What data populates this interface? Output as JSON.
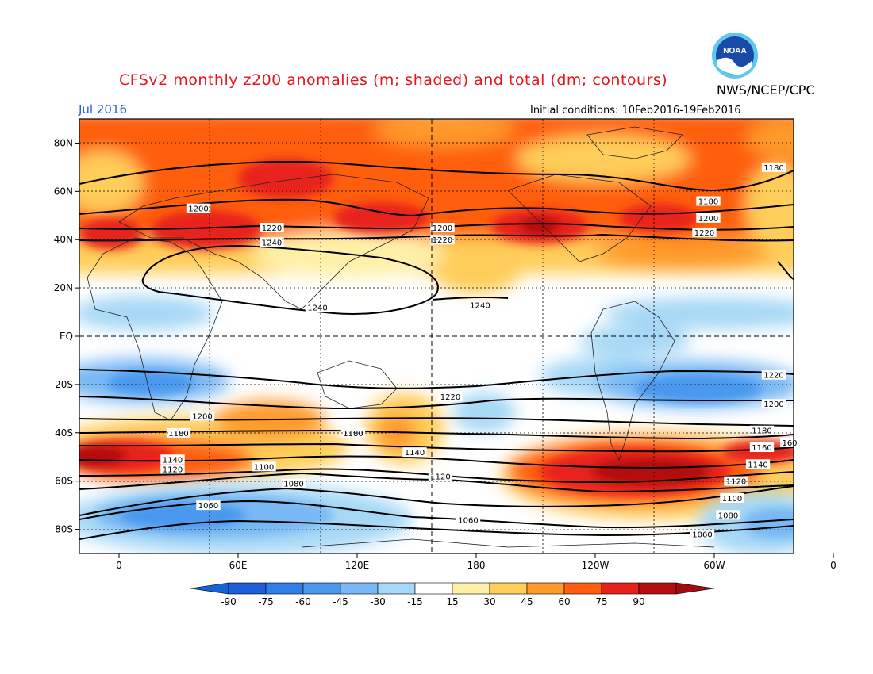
{
  "title": "CFSv2 monthly z200 anomalies (m; shaded) and total (dm; contours)",
  "agency": "NWS/NCEP/CPC",
  "logo_text": "NOAA",
  "month": "Jul 2016",
  "initial_conditions": "Initial conditions: 10Feb2016-19Feb2016",
  "lat_labels": [
    "80N",
    "60N",
    "40N",
    "20N",
    "EQ",
    "20S",
    "40S",
    "60S",
    "80S"
  ],
  "lon_labels": [
    "0",
    "60E",
    "120E",
    "180",
    "120W",
    "60W",
    "0"
  ],
  "colorbar": {
    "ticks": [
      "-90",
      "-75",
      "-60",
      "-45",
      "-30",
      "-15",
      "15",
      "30",
      "45",
      "60",
      "75",
      "90"
    ],
    "colors": [
      "#1e5ed8",
      "#2f7fe6",
      "#4a98ee",
      "#78b8f4",
      "#a6d8f6",
      "#ffffff",
      "#fff0a8",
      "#ffcd5a",
      "#ff9a2a",
      "#ff5e10",
      "#e8201a",
      "#b40e10"
    ],
    "end_low": "#1463d6",
    "end_high": "#a00c10"
  },
  "contour_labels": [
    {
      "text": "1180",
      "lon": -30,
      "lat": 70
    },
    {
      "text": "1200",
      "lon": 40,
      "lat": 53
    },
    {
      "text": "1220",
      "lon": 77,
      "lat": 45
    },
    {
      "text": "1240",
      "lon": 77,
      "lat": 39
    },
    {
      "text": "1200",
      "lon": 163,
      "lat": 45
    },
    {
      "text": "1220",
      "lon": 163,
      "lat": 40
    },
    {
      "text": "1180",
      "lon": -63,
      "lat": 56
    },
    {
      "text": "1200",
      "lon": -63,
      "lat": 49
    },
    {
      "text": "1220",
      "lon": -65,
      "lat": 43
    },
    {
      "text": "1240",
      "lon": 100,
      "lat": 12
    },
    {
      "text": "1240",
      "lon": -178,
      "lat": 13
    },
    {
      "text": "1220",
      "lon": -30,
      "lat": -16
    },
    {
      "text": "1200",
      "lon": -30,
      "lat": -28
    },
    {
      "text": "1220",
      "lon": 167,
      "lat": -25
    },
    {
      "text": "1200",
      "lon": 42,
      "lat": -33
    },
    {
      "text": "1180",
      "lon": 30,
      "lat": -40
    },
    {
      "text": "1180",
      "lon": 118,
      "lat": -40
    },
    {
      "text": "1140",
      "lon": 149,
      "lat": -48
    },
    {
      "text": "160",
      "lon": -22,
      "lat": -44
    },
    {
      "text": "1140",
      "lon": 27,
      "lat": -51
    },
    {
      "text": "1120",
      "lon": 27,
      "lat": -55
    },
    {
      "text": "1100",
      "lon": 73,
      "lat": -54
    },
    {
      "text": "1080",
      "lon": 88,
      "lat": -61
    },
    {
      "text": "1060",
      "lon": 45,
      "lat": -70
    },
    {
      "text": "1120",
      "lon": 162,
      "lat": -58
    },
    {
      "text": "1060",
      "lon": 176,
      "lat": -76
    },
    {
      "text": "1180",
      "lon": -36,
      "lat": -39
    },
    {
      "text": "1160",
      "lon": -36,
      "lat": -46
    },
    {
      "text": "1140",
      "lon": -38,
      "lat": -53
    },
    {
      "text": "1120",
      "lon": -49,
      "lat": -60
    },
    {
      "text": "1100",
      "lon": -51,
      "lat": -67
    },
    {
      "text": "1080",
      "lon": -53,
      "lat": -74
    },
    {
      "text": "1060",
      "lon": -66,
      "lat": -82
    }
  ]
}
